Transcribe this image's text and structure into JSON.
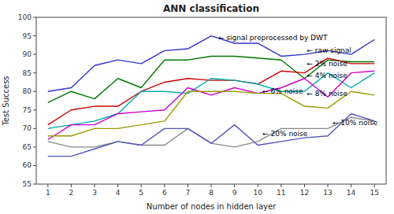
{
  "chart_data": {
    "type": "line",
    "title": "ANN classification",
    "x_label": "Number of nodes in hidden layer",
    "y_label": "Test Success",
    "x": [
      1,
      2,
      3,
      4,
      5,
      6,
      7,
      8,
      9,
      10,
      11,
      12,
      13,
      14,
      15
    ],
    "xlim": [
      0.5,
      15.5
    ],
    "xticks": [
      1,
      2,
      3,
      4,
      5,
      6,
      7,
      8,
      9,
      10,
      11,
      12,
      13,
      14,
      15
    ],
    "ylim": [
      55,
      100
    ],
    "yticks": [
      55,
      60,
      65,
      70,
      75,
      80,
      85,
      90,
      95,
      100
    ],
    "grid": false,
    "series": [
      {
        "color": "#3333cc",
        "values": [
          80,
          81,
          87,
          88.5,
          87.5,
          91,
          91.5,
          95,
          93,
          93,
          89.5,
          90,
          91,
          90,
          94
        ]
      },
      {
        "color": "#007700",
        "values": [
          77,
          80,
          78,
          83.5,
          81,
          88.5,
          88.5,
          89.5,
          89.5,
          89,
          88.5,
          83.5,
          88.5,
          88,
          88
        ]
      },
      {
        "color": "#cc0000",
        "values": [
          71,
          75,
          76,
          76,
          80,
          82.5,
          83.5,
          83,
          83,
          82,
          85.5,
          85,
          89,
          87.5,
          87.5
        ]
      },
      {
        "color": "#00aaaa",
        "values": [
          70,
          71,
          72,
          74,
          80,
          80,
          79.5,
          83.5,
          83,
          82,
          80,
          80,
          85,
          81,
          85
        ]
      },
      {
        "color": "#cc00cc",
        "values": [
          67,
          71,
          71,
          74,
          74.5,
          75,
          81,
          79,
          81,
          79.5,
          81,
          83.5,
          78.5,
          85,
          85.5
        ]
      },
      {
        "color": "#999900",
        "values": [
          68,
          68,
          70,
          70,
          71,
          72,
          80,
          80,
          80,
          79.5,
          79.5,
          76,
          75.5,
          80,
          79
        ]
      },
      {
        "color": "#888888",
        "values": [
          66.5,
          65,
          65,
          66.5,
          65.5,
          65.5,
          70,
          66,
          65,
          66.5,
          70,
          70,
          70,
          73,
          72
        ]
      },
      {
        "color": "#5555bb",
        "values": [
          62.5,
          62.5,
          64.5,
          66.5,
          65.5,
          70,
          70,
          66,
          71,
          65.5,
          66.5,
          67.5,
          68,
          74,
          72
        ]
      }
    ],
    "annotations": [
      {
        "text": "← signal preprocessed by DWT",
        "x": 8.3,
        "y": 94.5
      },
      {
        "text": "← raw signal",
        "x": 12.1,
        "y": 91.0
      },
      {
        "text": "← 2% noise",
        "x": 12.1,
        "y": 87.5
      },
      {
        "text": "← 4% noise",
        "x": 12.1,
        "y": 84.2
      },
      {
        "text": "← 6% noise",
        "x": 10.2,
        "y": 80.0
      },
      {
        "text": "← 8% noise",
        "x": 12.1,
        "y": 79.5
      },
      {
        "text": "← 10% noise",
        "x": 13.2,
        "y": 71.5
      },
      {
        "text": "← 20% noise",
        "x": 10.2,
        "y": 68.5
      }
    ]
  }
}
